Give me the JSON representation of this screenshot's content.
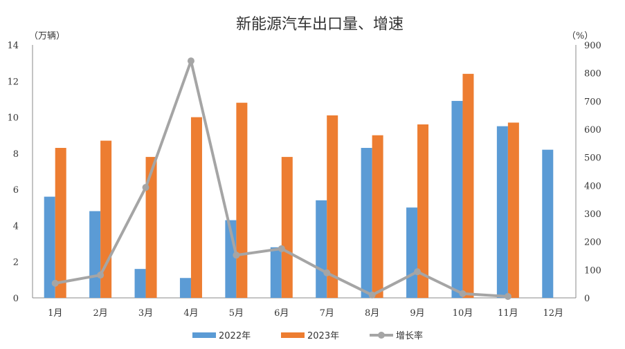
{
  "chart_data": {
    "type": "bar",
    "title": "新能源汽车出口量、增速",
    "ylabel_left": "（万辆）",
    "ylabel_right": "（%）",
    "categories": [
      "1月",
      "2月",
      "3月",
      "4月",
      "5月",
      "6月",
      "7月",
      "8月",
      "9月",
      "10月",
      "11月",
      "12月"
    ],
    "ylim_left": [
      0,
      14
    ],
    "yticks_left": [
      0,
      2,
      4,
      6,
      8,
      10,
      12,
      14
    ],
    "ylim_right": [
      0,
      900
    ],
    "yticks_right": [
      0,
      100,
      200,
      300,
      400,
      500,
      600,
      700,
      800,
      900
    ],
    "grid": false,
    "legend_position": "bottom",
    "series": [
      {
        "name": "2022年",
        "type": "bar",
        "axis": "left",
        "color": "#5B9BD5",
        "values": [
          5.6,
          4.8,
          1.6,
          1.1,
          4.3,
          2.8,
          5.4,
          8.3,
          5.0,
          10.9,
          9.5,
          8.2
        ]
      },
      {
        "name": "2023年",
        "type": "bar",
        "axis": "left",
        "color": "#ED7D31",
        "values": [
          8.3,
          8.7,
          7.8,
          10.0,
          10.8,
          7.8,
          10.1,
          9.0,
          9.6,
          12.4,
          9.7,
          null
        ]
      },
      {
        "name": "增长率",
        "type": "line",
        "axis": "right",
        "color": "#A5A5A5",
        "values": [
          52,
          81,
          393,
          843,
          152,
          175,
          89,
          10,
          93,
          15,
          5,
          null
        ]
      }
    ]
  }
}
